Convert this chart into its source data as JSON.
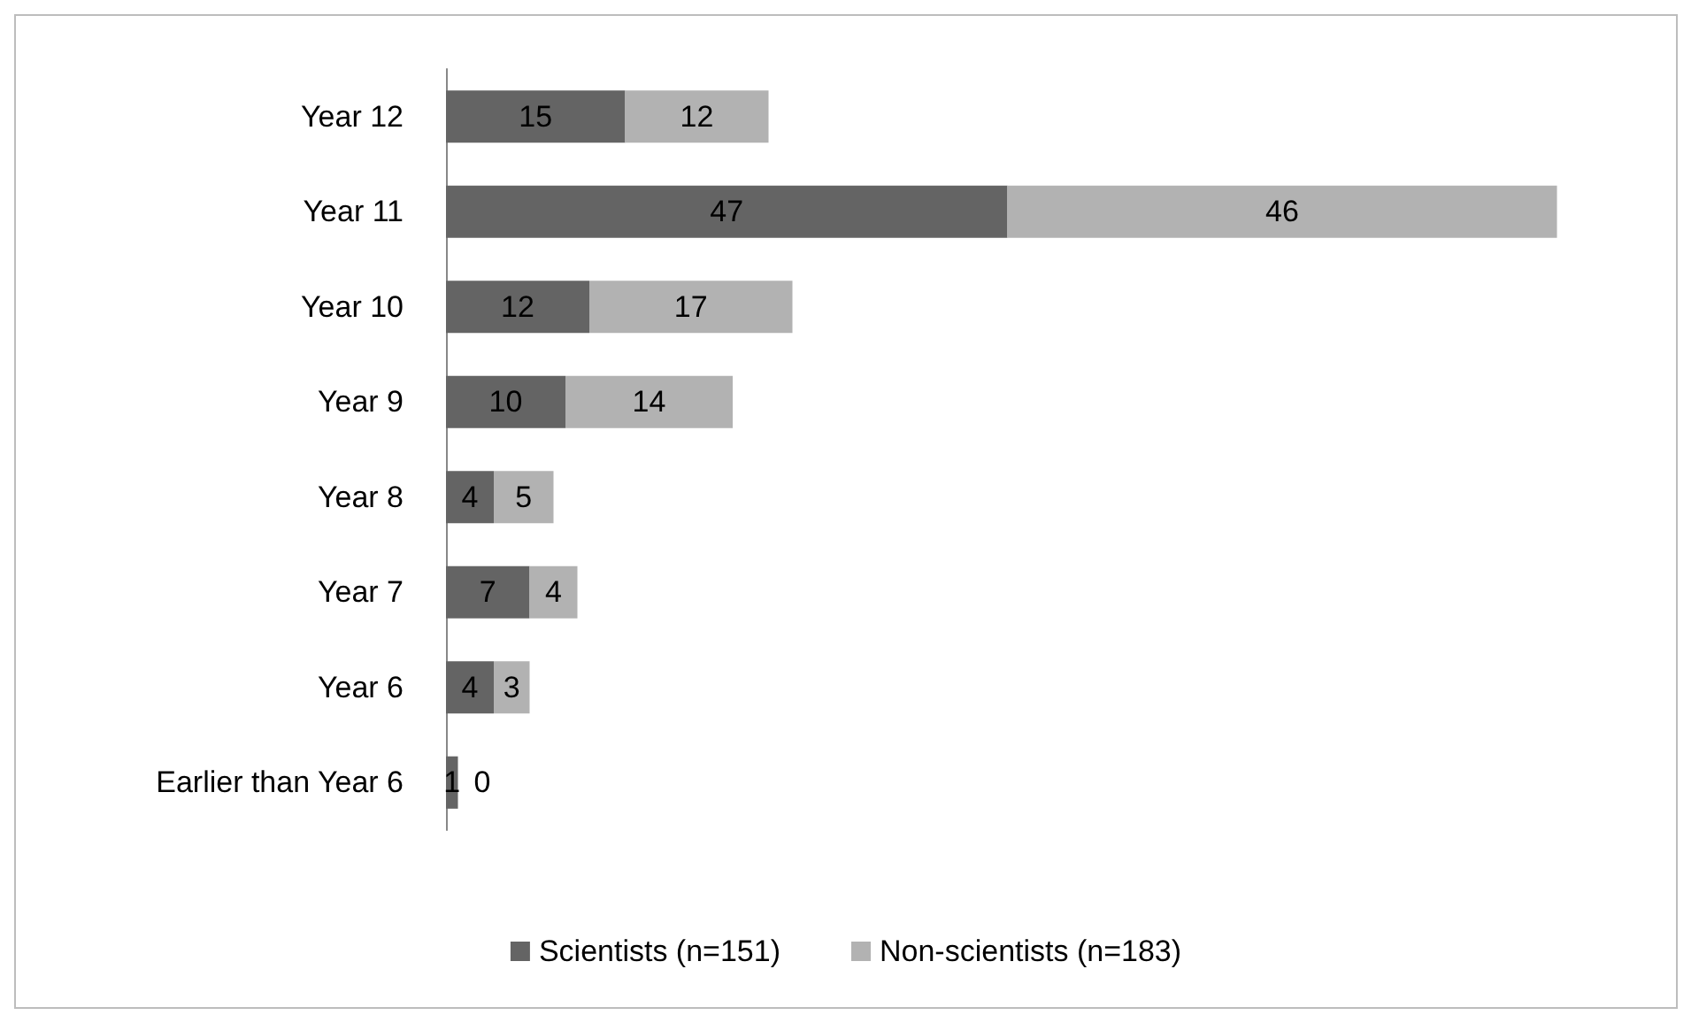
{
  "chart_data": {
    "type": "bar",
    "orientation": "horizontal",
    "stacked": true,
    "data_labels": true,
    "legend": "bottom",
    "categories": [
      "Year 12",
      "Year 11",
      "Year 10",
      "Year 9",
      "Year 8",
      "Year 7",
      "Year 6",
      "Earlier than Year 6"
    ],
    "series": [
      {
        "name": "Scientists (n=151)",
        "color": "#646464",
        "values": [
          15,
          47,
          12,
          10,
          4,
          7,
          4,
          1
        ]
      },
      {
        "name": "Non-scientists (n=183)",
        "color": "#b2b2b2",
        "values": [
          12,
          46,
          17,
          14,
          5,
          4,
          3,
          0
        ]
      }
    ]
  }
}
